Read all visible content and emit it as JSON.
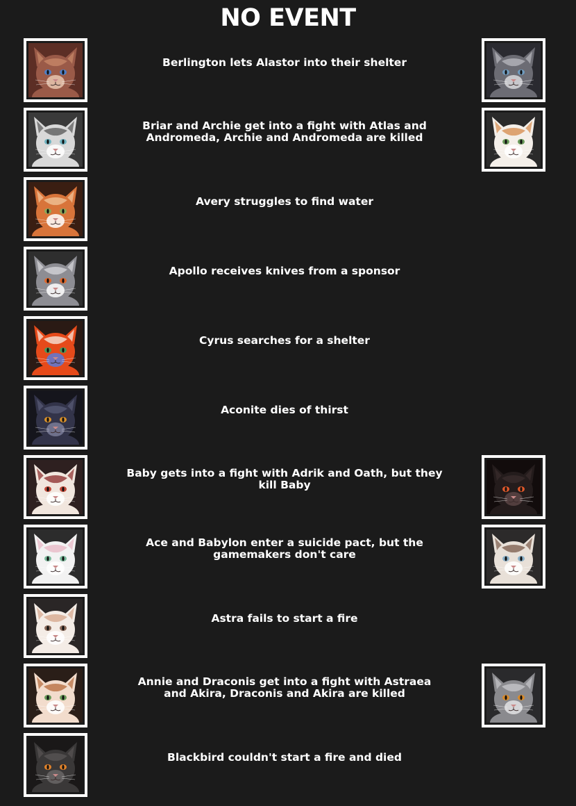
{
  "header": {
    "title": "NO EVENT"
  },
  "events": [
    {
      "text": "Berlington lets Alastor into their shelter",
      "left": {
        "fur": "#9a5a48",
        "bg": "#5c2e25",
        "mark": "#c98a6a",
        "eye": "#4f7fc6",
        "accent": "#e8c7b0",
        "icon": "cat-portrait-icon"
      },
      "right": {
        "fur": "#6c6c74",
        "bg": "#2a2a30",
        "mark": "#b9b9c0",
        "eye": "#6f9cc0",
        "accent": "#d8d8dc",
        "icon": "cat-portrait-icon"
      }
    },
    {
      "text": "Briar and Archie get into a fight with Atlas and Andromeda, Archie and Andromeda are killed",
      "left": {
        "fur": "#d8d8d8",
        "bg": "#3a3a3a",
        "mark": "#555555",
        "eye": "#6fb3c0",
        "accent": "#ffffff",
        "icon": "cat-portrait-icon"
      },
      "right": {
        "fur": "#f4efe9",
        "bg": "#2a2a2a",
        "mark": "#d68a4a",
        "eye": "#6a9a5a",
        "accent": "#ffffff",
        "icon": "cat-portrait-icon"
      }
    },
    {
      "text": "Avery struggles to find water",
      "left": {
        "fur": "#d8743a",
        "bg": "#3a1e12",
        "mark": "#f2c79c",
        "eye": "#8ba85a",
        "accent": "#ffffff",
        "icon": "cat-portrait-icon"
      }
    },
    {
      "text": "Apollo receives knives from a sponsor",
      "left": {
        "fur": "#8d8d93",
        "bg": "#2e2e2e",
        "mark": "#d8d8dc",
        "eye": "#e0682c",
        "accent": "#ffffff",
        "icon": "cat-portrait-icon"
      }
    },
    {
      "text": "Cyrus searches for a shelter",
      "left": {
        "fur": "#e64a1a",
        "bg": "#2a1a14",
        "mark": "#f6ede4",
        "eye": "#4a9a5a",
        "accent": "#5a7ad8",
        "icon": "cat-portrait-icon"
      }
    },
    {
      "text": "Aconite dies of thirst",
      "left": {
        "fur": "#33344a",
        "bg": "#15151c",
        "mark": "#5a5c78",
        "eye": "#d8902a",
        "accent": "#7a7c98",
        "icon": "cat-portrait-icon"
      }
    },
    {
      "text": "Baby gets into a fight with Adrik and Oath, but they kill Baby",
      "left": {
        "fur": "#f1e6de",
        "bg": "#2e2020",
        "mark": "#8a2a2a",
        "eye": "#c24a3a",
        "accent": "#ffffff",
        "icon": "cat-portrait-icon"
      },
      "right": {
        "fur": "#241c1c",
        "bg": "#120c0c",
        "mark": "#3a2c2c",
        "eye": "#e0582a",
        "accent": "#5a4444",
        "icon": "cat-portrait-icon"
      }
    },
    {
      "text": "Ace and Babylon enter a suicide pact, but the gamemakers don't care",
      "left": {
        "fur": "#f2f2f2",
        "bg": "#2c2c2c",
        "mark": "#e8b7c4",
        "eye": "#7ab89a",
        "accent": "#ffffff",
        "icon": "cat-portrait-icon"
      },
      "right": {
        "fur": "#e8e0d8",
        "bg": "#2c2a2a",
        "mark": "#7a5a4a",
        "eye": "#8ab0c8",
        "accent": "#ffffff",
        "icon": "cat-portrait-icon"
      }
    },
    {
      "text": "Astra fails to start a fire",
      "left": {
        "fur": "#f4ece6",
        "bg": "#2a2626",
        "mark": "#d6a58a",
        "eye": "#8a6a5a",
        "accent": "#ffffff",
        "icon": "cat-portrait-icon"
      }
    },
    {
      "text": "Annie and Draconis get into a fight with Astraea and Akira, Draconis and Akira are killed",
      "left": {
        "fur": "#f2dccc",
        "bg": "#2a1e18",
        "mark": "#b56a3a",
        "eye": "#6a9a5a",
        "accent": "#ffffff",
        "icon": "cat-portrait-icon"
      },
      "right": {
        "fur": "#8a8a8e",
        "bg": "#2a2a2c",
        "mark": "#c8c8cc",
        "eye": "#d88a2a",
        "accent": "#e2e2e4",
        "icon": "cat-portrait-icon"
      }
    },
    {
      "text": "Blackbird couldn't start a fire and died",
      "left": {
        "fur": "#3a3838",
        "bg": "#1a1818",
        "mark": "#5a5656",
        "eye": "#e0822a",
        "accent": "#6a6666",
        "icon": "cat-portrait-icon"
      }
    }
  ]
}
